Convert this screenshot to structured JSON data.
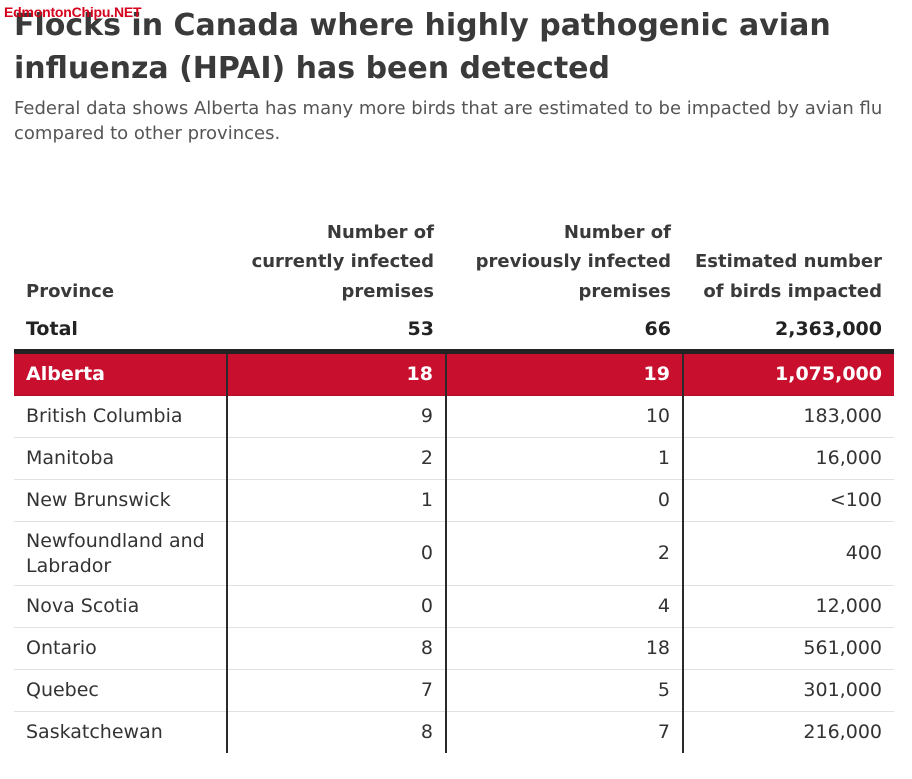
{
  "watermark": "EdmontonChipu.NET",
  "title": "Flocks in Canada where highly pathogenic avian influenza (HPAI) has been detected",
  "subtitle": "Federal data shows Alberta has many more birds that are estimated to be impacted by avian flu compared to other provinces.",
  "colors": {
    "highlight": "#c8102e",
    "text": "#333333"
  },
  "chart_data": {
    "type": "table",
    "columns": [
      "Province",
      "Number of currently infected premises",
      "Number of previously infected premises",
      "Estimated number of birds impacted"
    ],
    "total": {
      "label": "Total",
      "current": "53",
      "previous": "66",
      "birds": "2,363,000"
    },
    "rows": [
      {
        "province": "Alberta",
        "current": "18",
        "previous": "19",
        "birds": "1,075,000",
        "highlighted": true
      },
      {
        "province": "British Columbia",
        "current": "9",
        "previous": "10",
        "birds": "183,000"
      },
      {
        "province": "Manitoba",
        "current": "2",
        "previous": "1",
        "birds": "16,000"
      },
      {
        "province": "New Brunswick",
        "current": "1",
        "previous": "0",
        "birds": "<100"
      },
      {
        "province": "Newfoundland and Labrador",
        "current": "0",
        "previous": "2",
        "birds": "400"
      },
      {
        "province": "Nova Scotia",
        "current": "0",
        "previous": "4",
        "birds": "12,000"
      },
      {
        "province": "Ontario",
        "current": "8",
        "previous": "18",
        "birds": "561,000"
      },
      {
        "province": "Quebec",
        "current": "7",
        "previous": "5",
        "birds": "301,000"
      },
      {
        "province": "Saskatchewan",
        "current": "8",
        "previous": "7",
        "birds": "216,000"
      }
    ]
  }
}
